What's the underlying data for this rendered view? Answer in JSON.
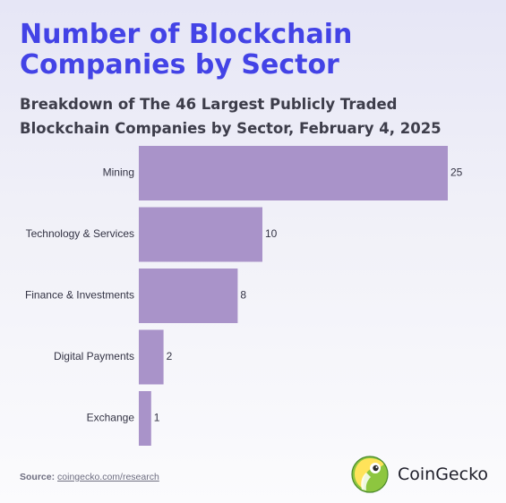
{
  "title": "Number of Blockchain Companies by Sector",
  "subtitle": "Breakdown of The 46 Largest Publicly Traded Blockchain Companies by Sector, February 4, 2025",
  "source": {
    "prefix": "Source:",
    "link": "coingecko.com/research"
  },
  "brand": {
    "name": "CoinGecko",
    "logo_icon": "coingecko-logo-icon"
  },
  "colors": {
    "bar": "#a993c9",
    "title": "#4343e6",
    "text": "#333344"
  },
  "chart_data": {
    "type": "bar",
    "orientation": "horizontal",
    "title": "Number of Blockchain Companies by Sector",
    "subtitle": "Breakdown of The 46 Largest Publicly Traded Blockchain Companies by Sector, February 4, 2025",
    "categories": [
      "Mining",
      "Technology & Services",
      "Finance & Investments",
      "Digital Payments",
      "Exchange"
    ],
    "values": [
      25,
      10,
      8,
      2,
      1
    ],
    "xlim": [
      0,
      25
    ],
    "grid": false,
    "legend": "none",
    "data_labels": true
  }
}
